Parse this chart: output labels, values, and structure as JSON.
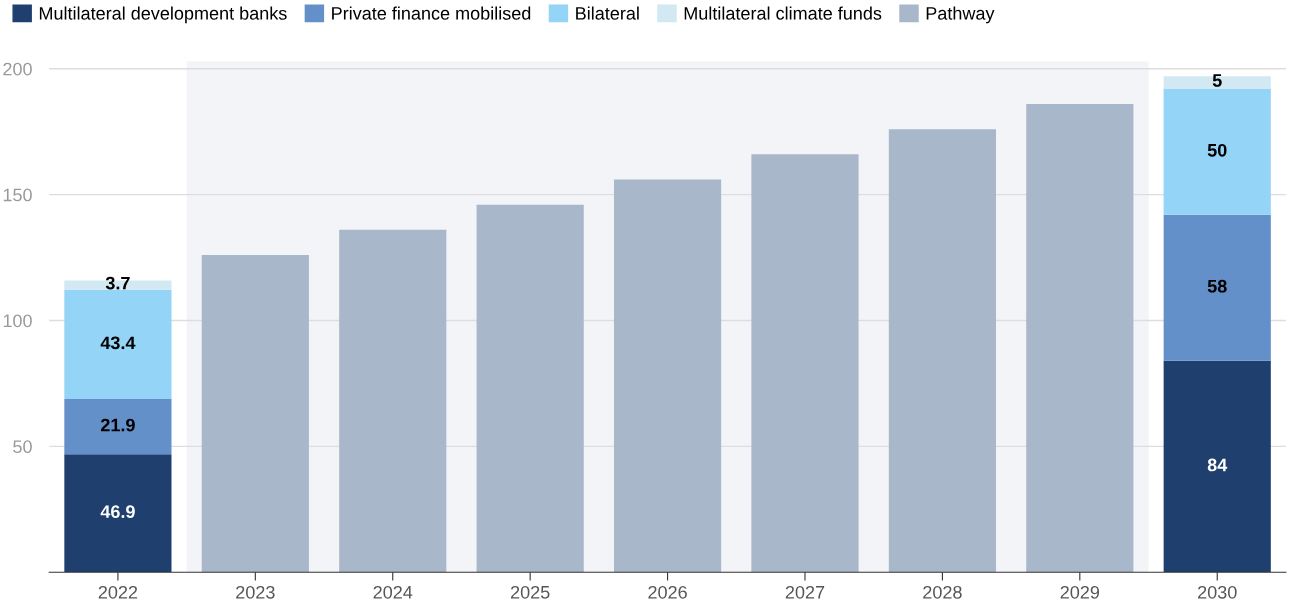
{
  "chart_data": {
    "type": "bar",
    "stacked": true,
    "categories": [
      "2022",
      "2023",
      "2024",
      "2025",
      "2026",
      "2027",
      "2028",
      "2029",
      "2030"
    ],
    "series": [
      {
        "name": "Multilateral development banks",
        "color": "#1f406e",
        "values": [
          46.9,
          null,
          null,
          null,
          null,
          null,
          null,
          null,
          84
        ],
        "value_labels": [
          "46.9",
          null,
          null,
          null,
          null,
          null,
          null,
          null,
          "84"
        ]
      },
      {
        "name": "Private finance mobilised",
        "color": "#6390c8",
        "values": [
          21.9,
          null,
          null,
          null,
          null,
          null,
          null,
          null,
          58
        ],
        "value_labels": [
          "21.9",
          null,
          null,
          null,
          null,
          null,
          null,
          null,
          "58"
        ]
      },
      {
        "name": "Bilateral",
        "color": "#93d4f7",
        "values": [
          43.4,
          null,
          null,
          null,
          null,
          null,
          null,
          null,
          50
        ],
        "value_labels": [
          "43.4",
          null,
          null,
          null,
          null,
          null,
          null,
          null,
          "50"
        ]
      },
      {
        "name": "Multilateral climate funds",
        "color": "#d2e8f2",
        "values": [
          3.7,
          null,
          null,
          null,
          null,
          null,
          null,
          null,
          5
        ],
        "value_labels": [
          "3.7",
          null,
          null,
          null,
          null,
          null,
          null,
          null,
          "5"
        ]
      },
      {
        "name": "Pathway",
        "color": "#a8b7c9",
        "values": [
          null,
          126,
          136,
          146,
          156,
          166,
          176,
          186,
          null
        ]
      }
    ],
    "bands": [
      {
        "axis": "x",
        "from": "2023",
        "to": "2029",
        "color": "#f3f4f8"
      }
    ],
    "ylim": [
      0,
      203
    ],
    "yticks": [
      50,
      100,
      150,
      200
    ],
    "grid": "y",
    "legend": "top left"
  }
}
